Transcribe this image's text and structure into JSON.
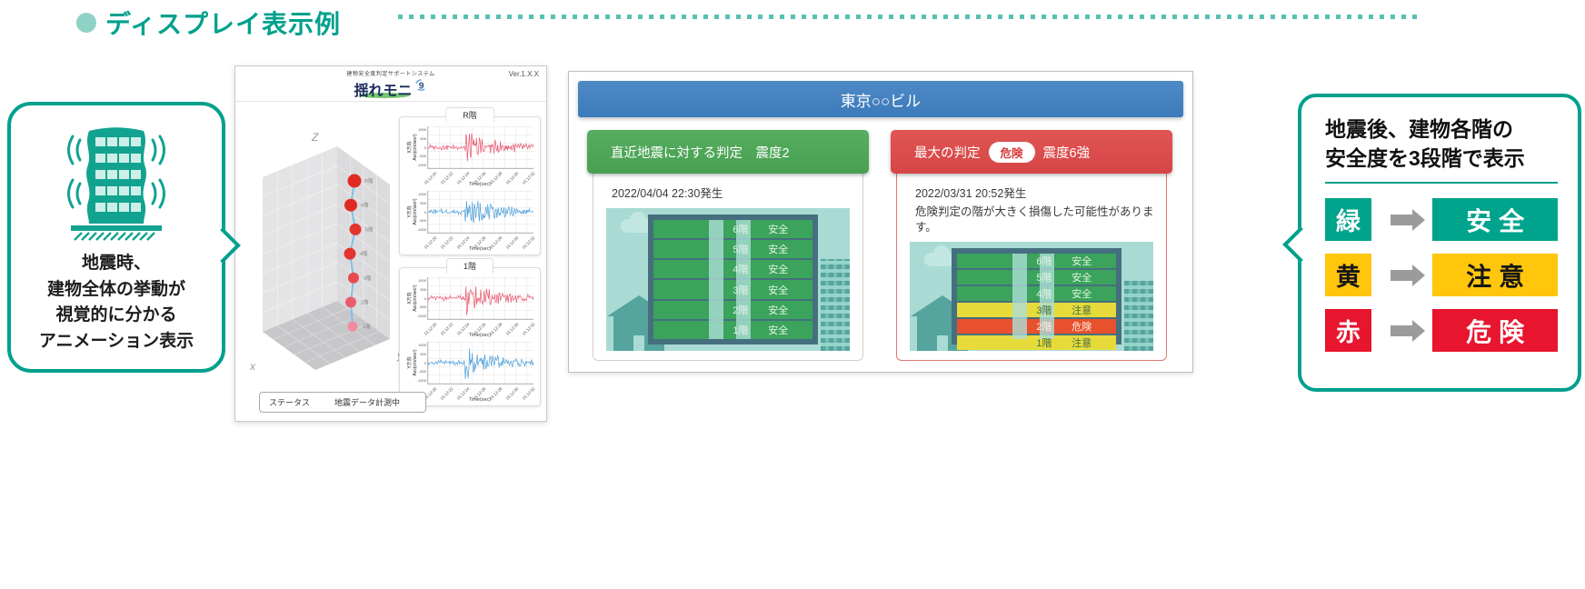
{
  "page": {
    "heading": "ディスプレイ表示例"
  },
  "monitor_app": {
    "tagline": "建物安全度判定サポートシステム",
    "logo_text": "揺れモニ",
    "version": "Ver.1.X.X",
    "axis_labels": {
      "z": "Z",
      "x": "x",
      "y": "y"
    },
    "node_labels": [
      "R階",
      "6階",
      "5階",
      "4階",
      "3階",
      "2階",
      "1階"
    ],
    "chart_panels": [
      {
        "title": "R階"
      },
      {
        "title": "1階"
      }
    ],
    "chart_axis": {
      "x_dir": "X方向",
      "y_dir": "Y方向",
      "unit": "Acc(cm/sec²)",
      "time_label": "Time(sec)"
    },
    "y_ticks": [
      "1000",
      "500",
      "0",
      "-500",
      "-1000"
    ],
    "time_ticks": [
      "15:12:20",
      "15:12:22",
      "15:12:24",
      "15:12:26",
      "15:12:28",
      "15:12:30",
      "15:12:32"
    ],
    "status": {
      "label": "ステータス",
      "value": "地震データ計測中"
    }
  },
  "animation_callout": {
    "lines": [
      "地震時、",
      "建物全体の挙動が",
      "視覚的に分かる",
      "アニメーション表示"
    ]
  },
  "display_board": {
    "building_title": "東京○○ビル",
    "cards": [
      {
        "header": "直近地震に対する判定　震度2",
        "date": "2022/04/04 22:30発生",
        "floors": [
          {
            "floor": "6階",
            "status": "安全",
            "level": "green"
          },
          {
            "floor": "5階",
            "status": "安全",
            "level": "green"
          },
          {
            "floor": "4階",
            "status": "安全",
            "level": "green"
          },
          {
            "floor": "3階",
            "status": "安全",
            "level": "green"
          },
          {
            "floor": "2階",
            "status": "安全",
            "level": "green"
          },
          {
            "floor": "1階",
            "status": "安全",
            "level": "green"
          }
        ]
      },
      {
        "header_prefix": "最大の判定",
        "badge": "危険",
        "header_suffix": "震度6強",
        "date": "2022/03/31 20:52発生",
        "note": "危険判定の階が大きく損傷した可能性があります。",
        "floors": [
          {
            "floor": "6階",
            "status": "安全",
            "level": "green"
          },
          {
            "floor": "5階",
            "status": "安全",
            "level": "green"
          },
          {
            "floor": "4階",
            "status": "安全",
            "level": "green"
          },
          {
            "floor": "3階",
            "status": "注意",
            "level": "yellow"
          },
          {
            "floor": "2階",
            "status": "危険",
            "level": "red"
          },
          {
            "floor": "1階",
            "status": "注意",
            "level": "yellow"
          }
        ]
      }
    ]
  },
  "legend_callout": {
    "title_line1": "地震後、建物各階の",
    "title_line2": "安全度を3段階で表示",
    "legend": [
      {
        "color_name": "緑",
        "meaning": "安全",
        "level": "green"
      },
      {
        "color_name": "黄",
        "meaning": "注意",
        "level": "yellow"
      },
      {
        "color_name": "赤",
        "meaning": "危険",
        "level": "red"
      }
    ]
  },
  "colors": {
    "brand_teal": "#00A08E",
    "header_blue": "#4280BE",
    "safe_green": "#3BA35B",
    "caution_yellow": "#E7DB3C",
    "danger_red": "#E8512D",
    "legend_teal": "#00A38C",
    "legend_yellow": "#FFC60B",
    "legend_red": "#E8152E",
    "card_green": "#4FA75A",
    "card_red": "#DC4A4A",
    "wave_red": "#E8556D",
    "wave_blue": "#4E9FD9"
  }
}
